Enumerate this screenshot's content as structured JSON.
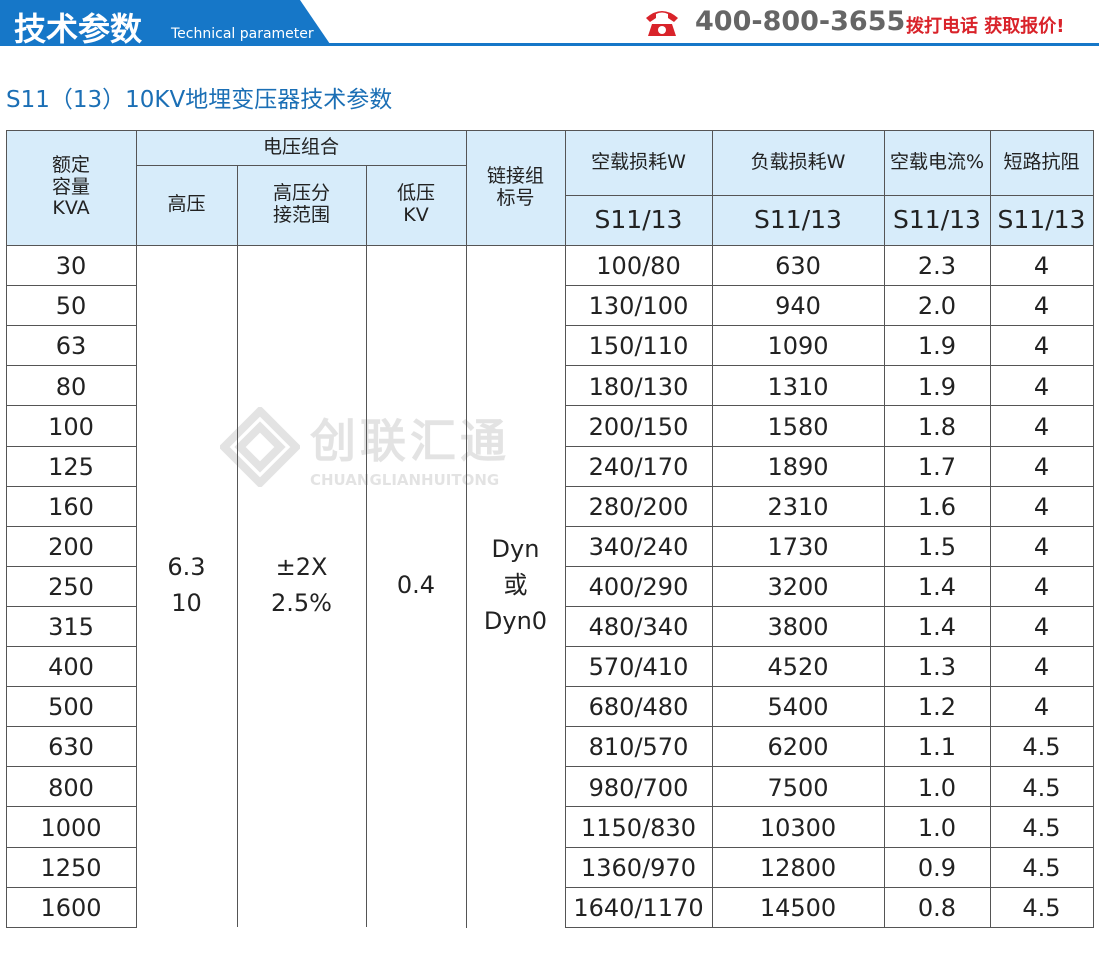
{
  "header": {
    "title": "技术参数",
    "subtitle": "Technical parameter",
    "phone": "400-800-3655",
    "slogan": "拨打电话 获取报价!"
  },
  "table_title": "S11（13）10KV地埋变压器技术参数",
  "watermark": {
    "name": "创联汇通",
    "pinyin": "CHUANGLIANHUITONG"
  },
  "table": {
    "headers": {
      "rated_capacity": [
        "额定",
        "容量",
        "KVA"
      ],
      "voltage_group": "电压组合",
      "high_voltage": "高压",
      "tap_range": [
        "高压分",
        "接范围"
      ],
      "low_voltage": [
        "低压",
        "KV"
      ],
      "connection": [
        "链接组",
        "标号"
      ],
      "no_load_loss": "空载损耗W",
      "load_loss": "负载损耗W",
      "no_load_current": "空载电流%",
      "impedance": "短路抗阻",
      "models": [
        "S11/13",
        "S11/13",
        "S11/13",
        "S11/13"
      ]
    },
    "merged": {
      "high_voltage": [
        "6.3",
        "10"
      ],
      "tap_range": [
        "±2X",
        "2.5%"
      ],
      "low_voltage": "0.4",
      "connection": [
        "Dyn",
        "或",
        "Dyn0"
      ]
    },
    "rows": [
      [
        "30",
        "100/80",
        "630",
        "2.3",
        "4"
      ],
      [
        "50",
        "130/100",
        "940",
        "2.0",
        "4"
      ],
      [
        "63",
        "150/110",
        "1090",
        "1.9",
        "4"
      ],
      [
        "80",
        "180/130",
        "1310",
        "1.9",
        "4"
      ],
      [
        "100",
        "200/150",
        "1580",
        "1.8",
        "4"
      ],
      [
        "125",
        "240/170",
        "1890",
        "1.7",
        "4"
      ],
      [
        "160",
        "280/200",
        "2310",
        "1.6",
        "4"
      ],
      [
        "200",
        "340/240",
        "1730",
        "1.5",
        "4"
      ],
      [
        "250",
        "400/290",
        "3200",
        "1.4",
        "4"
      ],
      [
        "315",
        "480/340",
        "3800",
        "1.4",
        "4"
      ],
      [
        "400",
        "570/410",
        "4520",
        "1.3",
        "4"
      ],
      [
        "500",
        "680/480",
        "5400",
        "1.2",
        "4"
      ],
      [
        "630",
        "810/570",
        "6200",
        "1.1",
        "4.5"
      ],
      [
        "800",
        "980/700",
        "7500",
        "1.0",
        "4.5"
      ],
      [
        "1000",
        "1150/830",
        "10300",
        "1.0",
        "4.5"
      ],
      [
        "1250",
        "1360/970",
        "12800",
        "0.9",
        "4.5"
      ],
      [
        "1600",
        "1640/1170",
        "14500",
        "0.8",
        "4.5"
      ]
    ]
  }
}
